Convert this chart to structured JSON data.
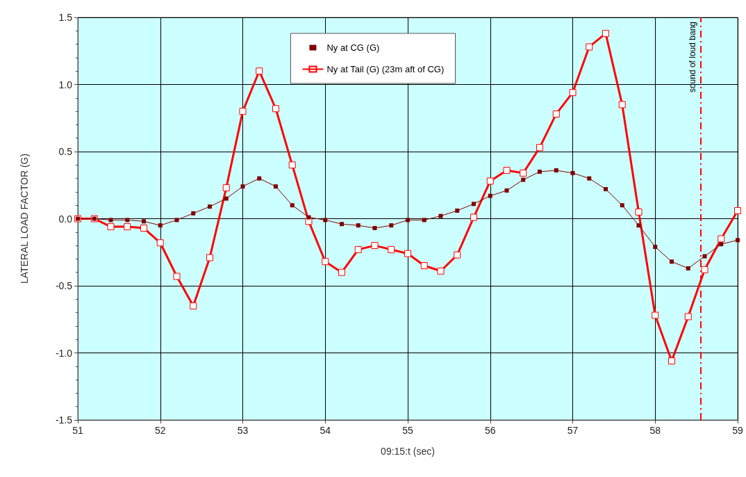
{
  "chart_data": {
    "type": "line",
    "xlabel": "09:15:t (sec)",
    "ylabel": "LATERAL LOAD FACTOR (G)",
    "x": [
      51,
      51.2,
      51.4,
      51.6,
      51.8,
      52,
      52.2,
      52.4,
      52.6,
      52.8,
      53,
      53.2,
      53.4,
      53.6,
      53.8,
      54,
      54.2,
      54.4,
      54.6,
      54.8,
      55,
      55.2,
      55.4,
      55.6,
      55.8,
      56,
      56.2,
      56.4,
      56.6,
      56.8,
      57,
      57.2,
      57.4,
      57.6,
      57.8,
      58,
      58.2,
      58.4,
      58.6,
      58.8,
      59
    ],
    "series": [
      {
        "name": "Ny at CG (G)",
        "color": "#800000",
        "values": [
          0,
          0,
          -0.01,
          -0.01,
          -0.02,
          -0.05,
          -0.01,
          0.04,
          0.09,
          0.15,
          0.24,
          0.3,
          0.24,
          0.1,
          0.01,
          -0.01,
          -0.04,
          -0.05,
          -0.07,
          -0.05,
          -0.01,
          -0.01,
          0.02,
          0.06,
          0.11,
          0.17,
          0.21,
          0.29,
          0.35,
          0.36,
          0.34,
          0.3,
          0.22,
          0.1,
          -0.05,
          -0.21,
          -0.32,
          -0.37,
          -0.28,
          -0.19,
          -0.16
        ]
      },
      {
        "name": "Ny at Tail (G) (23m aft of CG)",
        "color": "#ff0000",
        "values": [
          0,
          0,
          -0.06,
          -0.06,
          -0.07,
          -0.18,
          -0.43,
          -0.65,
          -0.29,
          0.23,
          0.8,
          1.1,
          0.82,
          0.4,
          -0.02,
          -0.32,
          -0.4,
          -0.23,
          -0.2,
          -0.23,
          -0.26,
          -0.35,
          -0.39,
          -0.27,
          0.01,
          0.28,
          0.36,
          0.34,
          0.53,
          0.78,
          0.94,
          1.28,
          1.38,
          0.85,
          0.05,
          -0.72,
          -1.06,
          -0.73,
          -0.38,
          -0.15,
          0.06
        ]
      }
    ],
    "xlim": [
      51,
      59
    ],
    "xticks": [
      51,
      52,
      53,
      54,
      55,
      56,
      57,
      58,
      59
    ],
    "ylim": [
      -1.5,
      1.5
    ],
    "yticks": [
      {
        "value": -1.5,
        "label": "-1.5"
      },
      {
        "value": -1,
        "label": "-1.0"
      },
      {
        "value": -0.5,
        "label": "-0.5"
      },
      {
        "value": 0,
        "label": "0.0"
      },
      {
        "value": 0.5,
        "label": "0.5"
      },
      {
        "value": 1,
        "label": "1.0"
      },
      {
        "value": 1.5,
        "label": "1.5"
      }
    ],
    "ref_lines": [
      {
        "axis": "x",
        "value": 58.55,
        "label": "sound of loud bang",
        "color": "#ff0000",
        "line_style": "dashdot"
      }
    ],
    "grid": true,
    "legend": "top",
    "marker": "square",
    "line_style": "solid"
  }
}
